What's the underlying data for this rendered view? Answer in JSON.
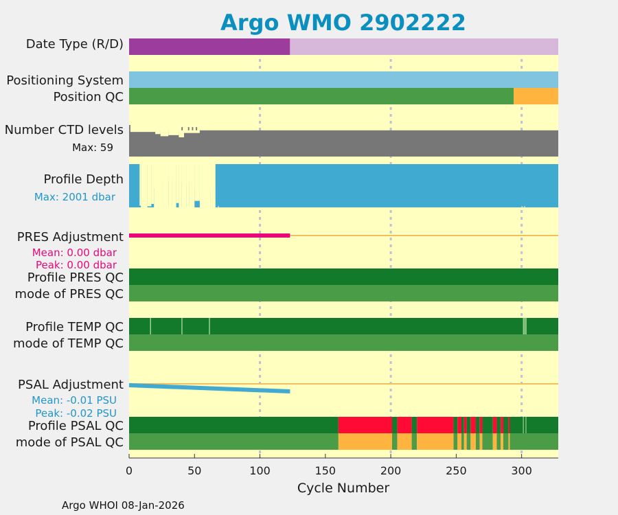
{
  "chart_data": {
    "type": "bar",
    "title": "Argo WMO 2902222",
    "xlabel": "Cycle Number",
    "xlim": [
      0,
      328
    ],
    "xticks": [
      "0",
      "50",
      "100",
      "150",
      "200",
      "250",
      "300"
    ],
    "xtick_values": [
      0,
      50,
      100,
      150,
      200,
      250,
      300
    ],
    "footer": "Argo WHOI 08-Jan-2026",
    "colors": {
      "background": "#ffffc0",
      "grid": "#c0c0d0",
      "date_r": "#9c3c9c",
      "date_d": "#d8b8da",
      "positioning": "#80c4e0",
      "qc_good": "#4a9c46",
      "qc_good_dark": "#127a2a",
      "qc_probably_bad": "#ffb440",
      "qc_bad": "#ff0a34",
      "ctd": "#777777",
      "depth": "#40aad0",
      "pres_adj": "#e8087a",
      "psal_adj": "#40aad0",
      "zero_line": "#f0c060",
      "stat_pres": "#e8087a",
      "stat_psal": "#2196c8"
    },
    "rows": {
      "date_type": {
        "label": "Date Type (R/D)",
        "segments": [
          {
            "start": 0,
            "end": 123,
            "value": "R"
          },
          {
            "start": 123,
            "end": 328,
            "value": "D"
          }
        ]
      },
      "positioning_system": {
        "label": "Positioning System"
      },
      "position_qc": {
        "label": "Position QC",
        "segments": [
          {
            "start": 0,
            "end": 294,
            "flag": "good"
          },
          {
            "start": 294,
            "end": 328,
            "flag": "probably_bad"
          }
        ]
      },
      "ctd_levels": {
        "label": "Number CTD levels",
        "max_label": "Max: 59",
        "max": 59,
        "typical": 49,
        "dips": [
          {
            "start": 1,
            "end": 20,
            "value": 46
          },
          {
            "start": 20,
            "end": 24,
            "value": 42
          },
          {
            "start": 24,
            "end": 30,
            "value": 38
          },
          {
            "start": 30,
            "end": 38,
            "value": 40
          },
          {
            "start": 38,
            "end": 42,
            "value": 36
          },
          {
            "start": 42,
            "end": 54,
            "value": 44
          },
          {
            "start": 40,
            "end": 41,
            "value": 55
          },
          {
            "start": 45,
            "end": 46,
            "value": 55
          },
          {
            "start": 48,
            "end": 49,
            "value": 55
          },
          {
            "start": 51,
            "end": 52,
            "value": 55
          },
          {
            "start": 0,
            "end": 1,
            "value": 59
          }
        ]
      },
      "profile_depth": {
        "label": "Profile Depth",
        "max_label": "Max: 2001 dbar",
        "max": 2001,
        "gaps": [
          {
            "start": 8,
            "end": 9,
            "value": 80
          },
          {
            "start": 9,
            "end": 14,
            "value": 0
          },
          {
            "start": 14,
            "end": 17,
            "value": 50
          },
          {
            "start": 17,
            "end": 19,
            "value": 160
          },
          {
            "start": 19,
            "end": 26,
            "value": 0
          },
          {
            "start": 26,
            "end": 30,
            "value": 0
          },
          {
            "start": 30,
            "end": 33,
            "value": 0
          },
          {
            "start": 33,
            "end": 36,
            "value": 0
          },
          {
            "start": 36,
            "end": 38,
            "value": 200
          },
          {
            "start": 38,
            "end": 40,
            "value": 0
          },
          {
            "start": 40,
            "end": 44,
            "value": 0
          },
          {
            "start": 44,
            "end": 46,
            "value": 0
          },
          {
            "start": 46,
            "end": 48,
            "value": 0
          },
          {
            "start": 48,
            "end": 50,
            "value": 0
          },
          {
            "start": 50,
            "end": 54,
            "value": 300
          },
          {
            "start": 54,
            "end": 62,
            "value": 0
          },
          {
            "start": 62,
            "end": 64,
            "value": 0
          },
          {
            "start": 64,
            "end": 66,
            "value": 0
          }
        ]
      },
      "pres_adjustment": {
        "label": "PRES Adjustment",
        "mean_label": "Mean: 0.00 dbar",
        "peak_label": "Peak: 0.00 dbar",
        "x_end": 123,
        "value": 0.0
      },
      "profile_pres_qc": {
        "label": "Profile PRES QC"
      },
      "mode_pres_qc": {
        "label": "mode of PRES QC"
      },
      "profile_temp_qc": {
        "label": "Profile TEMP QC",
        "marks": [
          16,
          40,
          61,
          301,
          302,
          303
        ]
      },
      "mode_temp_qc": {
        "label": "mode of TEMP QC"
      },
      "psal_adjustment": {
        "label": "PSAL Adjustment",
        "mean_label": "Mean: -0.01 PSU",
        "peak_label": "Peak: -0.02 PSU",
        "x_end": 123,
        "start_value": -0.001,
        "end_value": -0.02,
        "range": [
          -0.025,
          0.025
        ]
      },
      "profile_psal_qc": {
        "label": "Profile PSAL QC",
        "segments": [
          {
            "start": 0,
            "end": 160,
            "flag": "good_dark"
          },
          {
            "start": 160,
            "end": 201,
            "flag": "bad"
          },
          {
            "start": 201,
            "end": 205,
            "flag": "good_dark"
          },
          {
            "start": 205,
            "end": 216,
            "flag": "bad"
          },
          {
            "start": 216,
            "end": 220,
            "flag": "good_dark"
          },
          {
            "start": 220,
            "end": 248,
            "flag": "bad"
          },
          {
            "start": 248,
            "end": 251,
            "flag": "good_dark"
          },
          {
            "start": 251,
            "end": 254,
            "flag": "bad"
          },
          {
            "start": 254,
            "end": 256,
            "flag": "good_dark"
          },
          {
            "start": 256,
            "end": 258,
            "flag": "bad"
          },
          {
            "start": 258,
            "end": 261,
            "flag": "good_dark"
          },
          {
            "start": 261,
            "end": 265,
            "flag": "bad"
          },
          {
            "start": 265,
            "end": 268,
            "flag": "good_dark"
          },
          {
            "start": 268,
            "end": 270,
            "flag": "bad"
          },
          {
            "start": 270,
            "end": 278,
            "flag": "good_dark"
          },
          {
            "start": 278,
            "end": 281,
            "flag": "bad"
          },
          {
            "start": 281,
            "end": 284,
            "flag": "good_dark"
          },
          {
            "start": 284,
            "end": 286,
            "flag": "bad"
          },
          {
            "start": 286,
            "end": 290,
            "flag": "good_dark"
          },
          {
            "start": 290,
            "end": 291,
            "flag": "bad"
          },
          {
            "start": 291,
            "end": 328,
            "flag": "good_dark"
          }
        ]
      },
      "mode_psal_qc": {
        "label": "mode of PSAL QC",
        "segments": [
          {
            "start": 0,
            "end": 160,
            "flag": "good"
          },
          {
            "start": 160,
            "end": 201,
            "flag": "probably_bad"
          },
          {
            "start": 201,
            "end": 205,
            "flag": "good"
          },
          {
            "start": 205,
            "end": 216,
            "flag": "probably_bad"
          },
          {
            "start": 216,
            "end": 220,
            "flag": "good"
          },
          {
            "start": 220,
            "end": 248,
            "flag": "probably_bad"
          },
          {
            "start": 248,
            "end": 251,
            "flag": "good"
          },
          {
            "start": 251,
            "end": 254,
            "flag": "probably_bad"
          },
          {
            "start": 254,
            "end": 256,
            "flag": "good"
          },
          {
            "start": 256,
            "end": 258,
            "flag": "probably_bad"
          },
          {
            "start": 258,
            "end": 261,
            "flag": "good"
          },
          {
            "start": 261,
            "end": 265,
            "flag": "probably_bad"
          },
          {
            "start": 265,
            "end": 268,
            "flag": "good"
          },
          {
            "start": 268,
            "end": 270,
            "flag": "probably_bad"
          },
          {
            "start": 270,
            "end": 278,
            "flag": "good"
          },
          {
            "start": 278,
            "end": 281,
            "flag": "probably_bad"
          },
          {
            "start": 281,
            "end": 284,
            "flag": "good"
          },
          {
            "start": 284,
            "end": 286,
            "flag": "probably_bad"
          },
          {
            "start": 286,
            "end": 290,
            "flag": "good"
          },
          {
            "start": 290,
            "end": 291,
            "flag": "probably_bad"
          },
          {
            "start": 291,
            "end": 328,
            "flag": "good"
          }
        ]
      }
    }
  }
}
